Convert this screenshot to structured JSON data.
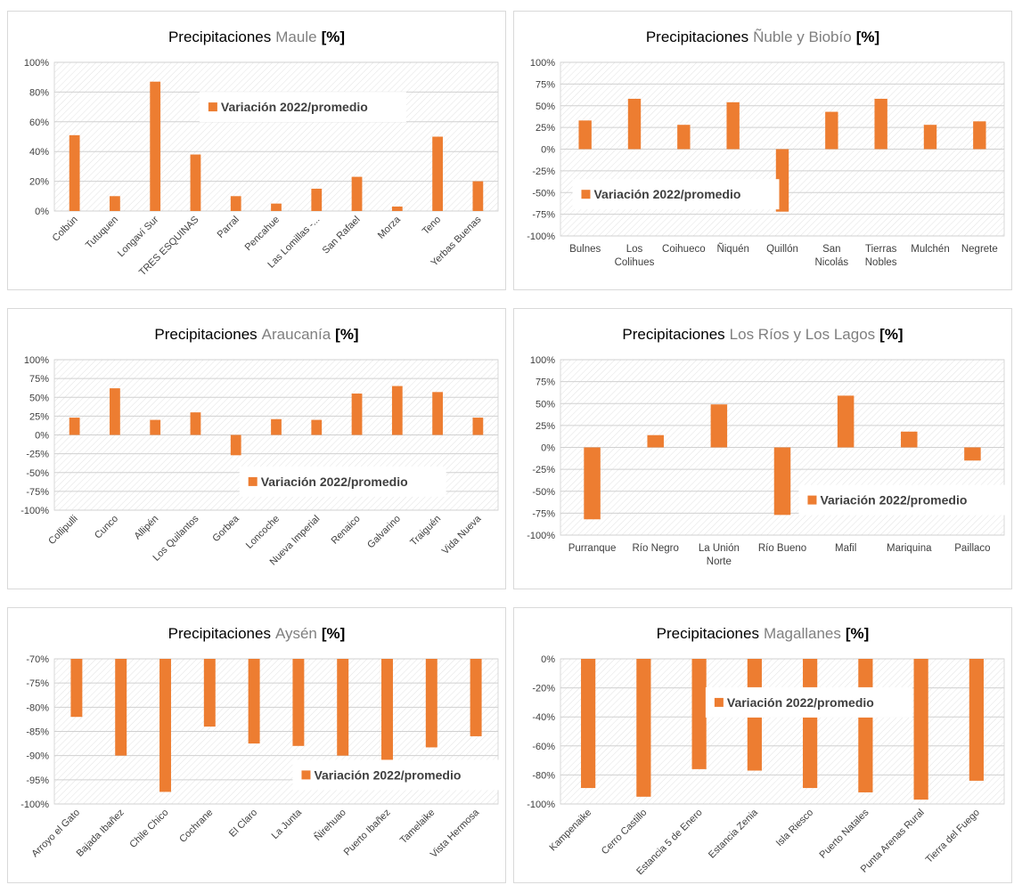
{
  "chart_data": [
    {
      "type": "bar",
      "title_parts": [
        "Precipitaciones",
        "Maule",
        "[%]"
      ],
      "categories": [
        "Colbún",
        "Tutuquen",
        "Longaví Sur",
        "TRES ESQUINAS",
        "Parral",
        "Pencahue",
        "Las Lomillas -...",
        "San Rafael",
        "Morza",
        "Teno",
        "Yerbas Buenas"
      ],
      "series": [
        {
          "name": "Variación 2022/promedio",
          "color": "#ed7d31",
          "values": [
            51,
            10,
            87,
            38,
            10,
            5,
            15,
            23,
            3,
            50,
            20
          ]
        }
      ],
      "ylim": [
        0,
        100
      ],
      "yticks": [
        {
          "value": 0,
          "label": "0%"
        },
        {
          "value": 20,
          "label": "20%"
        },
        {
          "value": 40,
          "label": "40%"
        },
        {
          "value": 60,
          "label": "60%"
        },
        {
          "value": 80,
          "label": "80%"
        },
        {
          "value": 100,
          "label": "100%"
        }
      ],
      "grid": true,
      "legend": "upper center",
      "x_label_style": "rotated"
    },
    {
      "type": "bar",
      "title_parts": [
        "Precipitaciones",
        "Ñuble y Biobío",
        "[%]"
      ],
      "categories": [
        "Bulnes",
        "Los Colihues",
        "Coihueco",
        "Ñiquén",
        "Quillón",
        "San Nicolás",
        "Tierras Nobles",
        "Mulchén",
        "Negrete"
      ],
      "series": [
        {
          "name": "Variación 2022/promedio",
          "color": "#ed7d31",
          "values": [
            33,
            58,
            28,
            54,
            -72,
            43,
            58,
            28,
            32
          ]
        }
      ],
      "ylim": [
        -100,
        100
      ],
      "yticks": [
        {
          "value": -100,
          "label": "-100%"
        },
        {
          "value": -75,
          "label": "-75%"
        },
        {
          "value": -50,
          "label": "-50%"
        },
        {
          "value": -25,
          "label": "-25%"
        },
        {
          "value": 0,
          "label": "0%"
        },
        {
          "value": 25,
          "label": "25%"
        },
        {
          "value": 50,
          "label": "50%"
        },
        {
          "value": 75,
          "label": "75%"
        },
        {
          "value": 100,
          "label": "100%"
        }
      ],
      "grid": true,
      "legend": "lower left",
      "x_label_style": "wrapped"
    },
    {
      "type": "bar",
      "title_parts": [
        "Precipitaciones",
        "Araucanía",
        "[%]"
      ],
      "categories": [
        "Collipulli",
        "Cunco",
        "Allipén",
        "Los Quilantos",
        "Gorbea",
        "Loncoche",
        "Nueva Imperial",
        "Renaico",
        "Galvarino",
        "Traiguén",
        "Vida Nueva"
      ],
      "series": [
        {
          "name": "Variación 2022/promedio",
          "color": "#ed7d31",
          "values": [
            23,
            62,
            20,
            30,
            -27,
            21,
            20,
            55,
            65,
            57,
            23
          ]
        }
      ],
      "ylim": [
        -100,
        100
      ],
      "yticks": [
        {
          "value": -100,
          "label": "-100%"
        },
        {
          "value": -75,
          "label": "-75%"
        },
        {
          "value": -50,
          "label": "-50%"
        },
        {
          "value": -25,
          "label": "-25%"
        },
        {
          "value": 0,
          "label": "0%"
        },
        {
          "value": 25,
          "label": "25%"
        },
        {
          "value": 50,
          "label": "50%"
        },
        {
          "value": 75,
          "label": "75%"
        },
        {
          "value": 100,
          "label": "100%"
        }
      ],
      "grid": true,
      "legend": "lower center",
      "x_label_style": "rotated"
    },
    {
      "type": "bar",
      "title_parts": [
        "Precipitaciones",
        "Los Ríos y Los Lagos",
        "[%]"
      ],
      "categories": [
        "Purranque",
        "Río Negro",
        "La Unión Norte",
        "Río Bueno",
        "Mafil",
        "Mariquina",
        "Paillaco"
      ],
      "series": [
        {
          "name": "Variación 2022/promedio",
          "color": "#ed7d31",
          "values": [
            -82,
            14,
            49,
            -77,
            59,
            18,
            -15
          ]
        }
      ],
      "ylim": [
        -100,
        100
      ],
      "yticks": [
        {
          "value": -100,
          "label": "-100%"
        },
        {
          "value": -75,
          "label": "-75%"
        },
        {
          "value": -50,
          "label": "-50%"
        },
        {
          "value": -25,
          "label": "-25%"
        },
        {
          "value": 0,
          "label": "0%"
        },
        {
          "value": 25,
          "label": "25%"
        },
        {
          "value": 50,
          "label": "50%"
        },
        {
          "value": 75,
          "label": "75%"
        },
        {
          "value": 100,
          "label": "100%"
        }
      ],
      "grid": true,
      "legend": "lower right",
      "x_label_style": "wrapped"
    },
    {
      "type": "bar",
      "title_parts": [
        "Precipitaciones",
        "Aysén",
        "[%]"
      ],
      "categories": [
        "Arroyo el Gato",
        "Bajada Ibañez",
        "Chile Chico",
        "Cochrane",
        "El Claro",
        "La Junta",
        "Ñirehuao",
        "Puerto Ibañez",
        "Tamelaike",
        "Vista Hermosa"
      ],
      "series": [
        {
          "name": "Variación 2022/promedio",
          "color": "#ed7d31",
          "values": [
            -82,
            -90,
            -97.5,
            -84,
            -87.5,
            -88,
            -90,
            -91,
            -88.3,
            -86
          ]
        }
      ],
      "ylim": [
        -100,
        -70
      ],
      "yticks": [
        {
          "value": -100,
          "label": "-100%"
        },
        {
          "value": -95,
          "label": "-95%"
        },
        {
          "value": -90,
          "label": "-90%"
        },
        {
          "value": -85,
          "label": "-85%"
        },
        {
          "value": -80,
          "label": "-80%"
        },
        {
          "value": -75,
          "label": "-75%"
        },
        {
          "value": -70,
          "label": "-70%"
        }
      ],
      "grid": true,
      "legend": "lower right",
      "x_label_style": "rotated"
    },
    {
      "type": "bar",
      "title_parts": [
        "Precipitaciones",
        "Magallanes",
        "[%]"
      ],
      "categories": [
        "Kampenaike",
        "Cerro Castillo",
        "Estancia 5 de Enero",
        "Estancia Zenia",
        "Isla Riesco",
        "Puerto Natales",
        "Punta Arenas Rural",
        "Tierra del Fuego"
      ],
      "series": [
        {
          "name": "Variación 2022/promedio",
          "color": "#ed7d31",
          "values": [
            -89,
            -95,
            -76,
            -77,
            -89,
            -92,
            -97,
            -84
          ]
        }
      ],
      "ylim": [
        -100,
        0
      ],
      "yticks": [
        {
          "value": -100,
          "label": "-100%"
        },
        {
          "value": -80,
          "label": "-80%"
        },
        {
          "value": -60,
          "label": "-60%"
        },
        {
          "value": -40,
          "label": "-40%"
        },
        {
          "value": -20,
          "label": "-20%"
        },
        {
          "value": 0,
          "label": "0%"
        }
      ],
      "grid": true,
      "legend": "upper center",
      "x_label_style": "rotated"
    }
  ]
}
